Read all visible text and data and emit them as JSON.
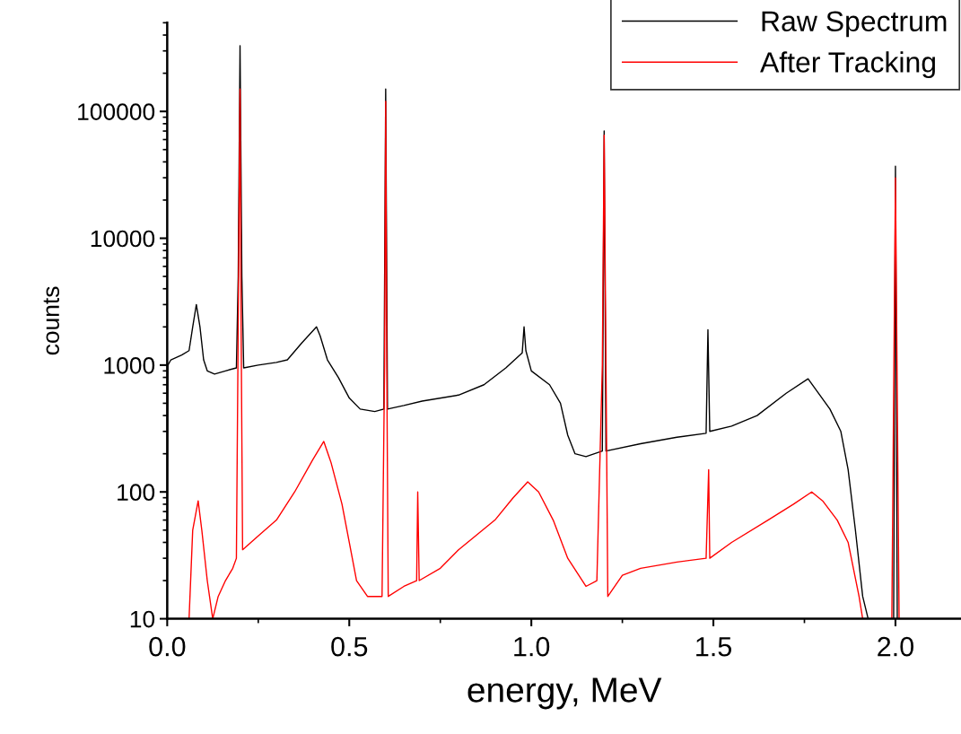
{
  "chart_data": {
    "type": "line",
    "xlabel": "energy, MeV",
    "ylabel": "counts",
    "xlim": [
      0,
      2.18
    ],
    "xticks": [
      {
        "value": 0,
        "label": "0.0"
      },
      0.5,
      {
        "value": 1,
        "label": "1.0"
      },
      1.5,
      {
        "value": 2,
        "label": "2.0"
      }
    ],
    "ylim": [
      10,
      500000
    ],
    "yticks": [
      10,
      100,
      1000,
      10000,
      100000
    ],
    "log": "y",
    "grid": false,
    "legend": "top right",
    "series": [
      {
        "name": "Raw Spectrum",
        "color": "#000000",
        "x": [
          0,
          0.002,
          0.01,
          0.04,
          0.06,
          0.07,
          0.08,
          0.09,
          0.1,
          0.11,
          0.13,
          0.16,
          0.19,
          0.195,
          0.2,
          0.205,
          0.21,
          0.25,
          0.3,
          0.33,
          0.37,
          0.41,
          0.42,
          0.44,
          0.47,
          0.5,
          0.53,
          0.57,
          0.595,
          0.6,
          0.605,
          0.65,
          0.7,
          0.8,
          0.87,
          0.93,
          0.975,
          0.98,
          0.985,
          1.0,
          1.05,
          1.08,
          1.1,
          1.12,
          1.15,
          1.195,
          1.2,
          1.205,
          1.3,
          1.4,
          1.48,
          1.485,
          1.49,
          1.55,
          1.62,
          1.7,
          1.76,
          1.78,
          1.82,
          1.85,
          1.87,
          1.89,
          1.91,
          1.925,
          1.96,
          1.995,
          2.0,
          2.005
        ],
        "values": [
          10,
          1000,
          1100,
          1200,
          1300,
          2000,
          3000,
          2000,
          1100,
          900,
          850,
          900,
          950,
          5000,
          330000,
          5000,
          950,
          1000,
          1050,
          1100,
          1500,
          2000,
          1700,
          1100,
          800,
          550,
          450,
          430,
          450,
          150000,
          450,
          480,
          520,
          580,
          700,
          950,
          1250,
          2000,
          1300,
          900,
          700,
          500,
          280,
          200,
          190,
          210,
          70000,
          210,
          240,
          270,
          290,
          1900,
          300,
          330,
          400,
          600,
          780,
          650,
          450,
          300,
          150,
          50,
          15,
          10,
          null,
          10,
          37000,
          10
        ]
      },
      {
        "name": "After Tracking",
        "color": "#ff0000",
        "x": [
          0.06,
          0.07,
          0.085,
          0.095,
          0.11,
          0.125,
          0.14,
          0.16,
          0.18,
          0.19,
          0.195,
          0.2,
          0.203,
          0.207,
          0.25,
          0.3,
          0.35,
          0.4,
          0.43,
          0.45,
          0.48,
          0.5,
          0.52,
          0.55,
          0.59,
          0.597,
          0.6,
          0.603,
          0.607,
          0.65,
          0.685,
          0.688,
          0.692,
          0.75,
          0.8,
          0.9,
          0.95,
          0.99,
          1.02,
          1.06,
          1.1,
          1.15,
          1.18,
          1.195,
          1.2,
          1.205,
          1.21,
          1.25,
          1.3,
          1.4,
          1.48,
          1.487,
          1.49,
          1.55,
          1.65,
          1.72,
          1.77,
          1.8,
          1.84,
          1.87,
          1.9,
          1.91,
          1.95,
          1.99,
          2.0,
          2.01
        ],
        "values": [
          10,
          50,
          85,
          50,
          20,
          10,
          15,
          20,
          25,
          30,
          2000,
          150000,
          2000,
          35,
          45,
          60,
          100,
          180,
          250,
          170,
          80,
          40,
          20,
          15,
          15,
          1000,
          120000,
          1000,
          15,
          18,
          20,
          100,
          20,
          25,
          35,
          60,
          90,
          120,
          100,
          60,
          30,
          18,
          20,
          1000,
          65000,
          1000,
          15,
          22,
          25,
          28,
          30,
          150,
          30,
          40,
          60,
          80,
          100,
          85,
          60,
          40,
          15,
          10,
          null,
          10,
          30000,
          10
        ]
      }
    ]
  }
}
